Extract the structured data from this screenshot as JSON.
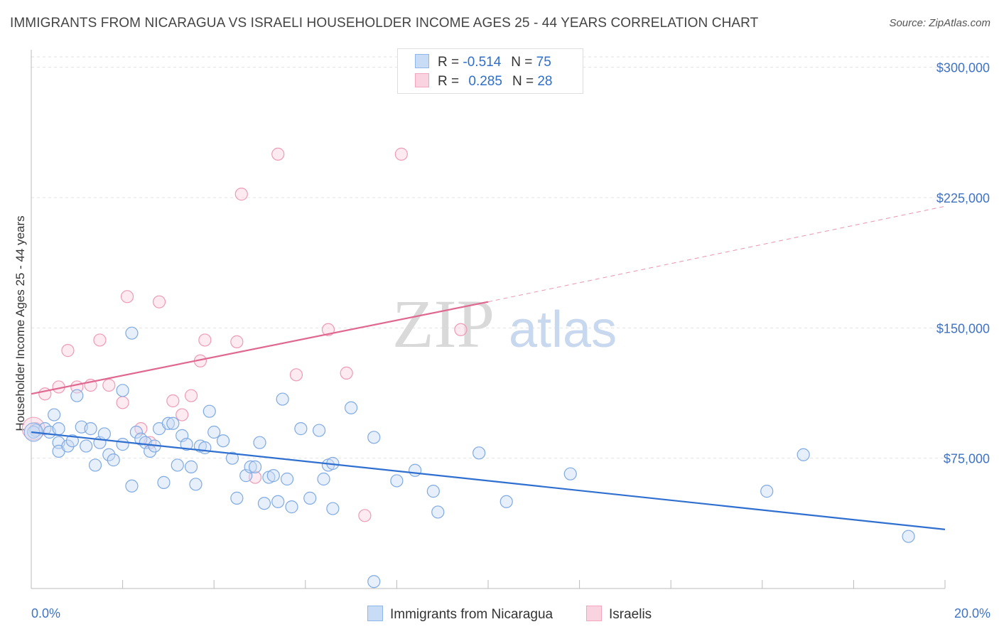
{
  "title": "IMMIGRANTS FROM NICARAGUA VS ISRAELI HOUSEHOLDER INCOME AGES 25 - 44 YEARS CORRELATION CHART",
  "source": "Source: ZipAtlas.com",
  "watermark": {
    "zip": "ZIP",
    "atlas": "atlas"
  },
  "legend": {
    "rows": [
      {
        "r_label": "R =",
        "r_value": "-0.514",
        "n_label": "N =",
        "n_value": "75",
        "color": "#8fb7ea"
      },
      {
        "r_label": "R =",
        "r_value": "0.285",
        "n_label": "N =",
        "n_value": "28",
        "color": "#f4a6bf"
      }
    ]
  },
  "bottom_legend": {
    "items": [
      {
        "label": "Immigrants from Nicaragua",
        "color": "#8fb7ea"
      },
      {
        "label": "Israelis",
        "color": "#f4a6bf"
      }
    ]
  },
  "chart_data": {
    "type": "scatter",
    "ylabel": "Householder Income Ages 25 - 44 years",
    "x_tick_labels": [
      "0.0%",
      "20.0%"
    ],
    "y_tick_labels": [
      "$75,000",
      "$150,000",
      "$225,000",
      "$300,000"
    ],
    "y_ticks": [
      75000,
      150000,
      225000,
      300000
    ],
    "xlim": [
      0,
      20
    ],
    "ylim": [
      0,
      306000
    ],
    "grid": true,
    "series": [
      {
        "name": "Immigrants from Nicaragua",
        "color": "#8fb7ea",
        "trend_color": "#2f6fd0",
        "trend": {
          "x0": 0,
          "y0": 90000,
          "x1": 20,
          "y1": 34000
        },
        "points": [
          [
            0.1,
            91000
          ],
          [
            0.3,
            92000
          ],
          [
            0.4,
            90000
          ],
          [
            0.5,
            100000
          ],
          [
            0.6,
            92000
          ],
          [
            0.6,
            84000
          ],
          [
            0.6,
            79000
          ],
          [
            0.8,
            82000
          ],
          [
            0.9,
            85000
          ],
          [
            1.0,
            111000
          ],
          [
            1.1,
            93000
          ],
          [
            1.2,
            82000
          ],
          [
            1.3,
            92000
          ],
          [
            1.4,
            71000
          ],
          [
            1.5,
            84000
          ],
          [
            1.6,
            89000
          ],
          [
            1.7,
            77000
          ],
          [
            1.8,
            74000
          ],
          [
            2.0,
            83000
          ],
          [
            2.0,
            114000
          ],
          [
            2.2,
            147000
          ],
          [
            2.2,
            59000
          ],
          [
            2.3,
            90000
          ],
          [
            2.4,
            86000
          ],
          [
            2.5,
            84000
          ],
          [
            2.6,
            79000
          ],
          [
            2.7,
            82000
          ],
          [
            2.8,
            92000
          ],
          [
            2.9,
            61000
          ],
          [
            3.0,
            95000
          ],
          [
            3.1,
            95000
          ],
          [
            3.2,
            71000
          ],
          [
            3.3,
            88000
          ],
          [
            3.4,
            83000
          ],
          [
            3.5,
            70000
          ],
          [
            3.6,
            60000
          ],
          [
            3.7,
            82000
          ],
          [
            3.8,
            81000
          ],
          [
            3.9,
            102000
          ],
          [
            4.0,
            90000
          ],
          [
            4.2,
            85000
          ],
          [
            4.4,
            75000
          ],
          [
            4.5,
            52000
          ],
          [
            4.7,
            65000
          ],
          [
            4.8,
            70000
          ],
          [
            4.9,
            70000
          ],
          [
            5.0,
            84000
          ],
          [
            5.1,
            49000
          ],
          [
            5.2,
            64000
          ],
          [
            5.3,
            65000
          ],
          [
            5.4,
            50000
          ],
          [
            5.5,
            109000
          ],
          [
            5.6,
            63000
          ],
          [
            5.7,
            47000
          ],
          [
            5.9,
            92000
          ],
          [
            6.1,
            52000
          ],
          [
            6.3,
            91000
          ],
          [
            6.4,
            63000
          ],
          [
            6.5,
            71000
          ],
          [
            6.6,
            46000
          ],
          [
            6.6,
            72000
          ],
          [
            7.0,
            104000
          ],
          [
            7.5,
            87000
          ],
          [
            7.5,
            4000
          ],
          [
            8.0,
            62000
          ],
          [
            8.4,
            68000
          ],
          [
            8.8,
            56000
          ],
          [
            8.9,
            44000
          ],
          [
            9.8,
            78000
          ],
          [
            10.4,
            50000
          ],
          [
            11.8,
            66000
          ],
          [
            16.1,
            56000
          ],
          [
            16.9,
            77000
          ],
          [
            19.2,
            30000
          ],
          [
            0.05,
            90000
          ]
        ]
      },
      {
        "name": "Israelis",
        "color": "#f4a6bf",
        "trend_color": "#e0678f",
        "trend": {
          "x0": 0,
          "y0": 112000,
          "x1": 10,
          "y1": 165000
        },
        "trend_dashed_to": {
          "x": 20,
          "y": 220000
        },
        "points": [
          [
            0.1,
            92000
          ],
          [
            0.3,
            112000
          ],
          [
            0.6,
            116000
          ],
          [
            0.8,
            137000
          ],
          [
            1.0,
            116000
          ],
          [
            1.3,
            117000
          ],
          [
            1.5,
            143000
          ],
          [
            1.7,
            117000
          ],
          [
            2.0,
            107000
          ],
          [
            2.1,
            168000
          ],
          [
            2.4,
            92000
          ],
          [
            2.6,
            84000
          ],
          [
            2.8,
            165000
          ],
          [
            3.1,
            108000
          ],
          [
            3.3,
            100000
          ],
          [
            3.5,
            111000
          ],
          [
            3.7,
            131000
          ],
          [
            3.8,
            143000
          ],
          [
            4.5,
            142000
          ],
          [
            4.6,
            227000
          ],
          [
            4.9,
            64000
          ],
          [
            5.4,
            250000
          ],
          [
            5.8,
            123000
          ],
          [
            6.5,
            149000
          ],
          [
            6.9,
            124000
          ],
          [
            7.3,
            42000
          ],
          [
            8.1,
            250000
          ],
          [
            9.4,
            149000
          ]
        ]
      }
    ]
  }
}
